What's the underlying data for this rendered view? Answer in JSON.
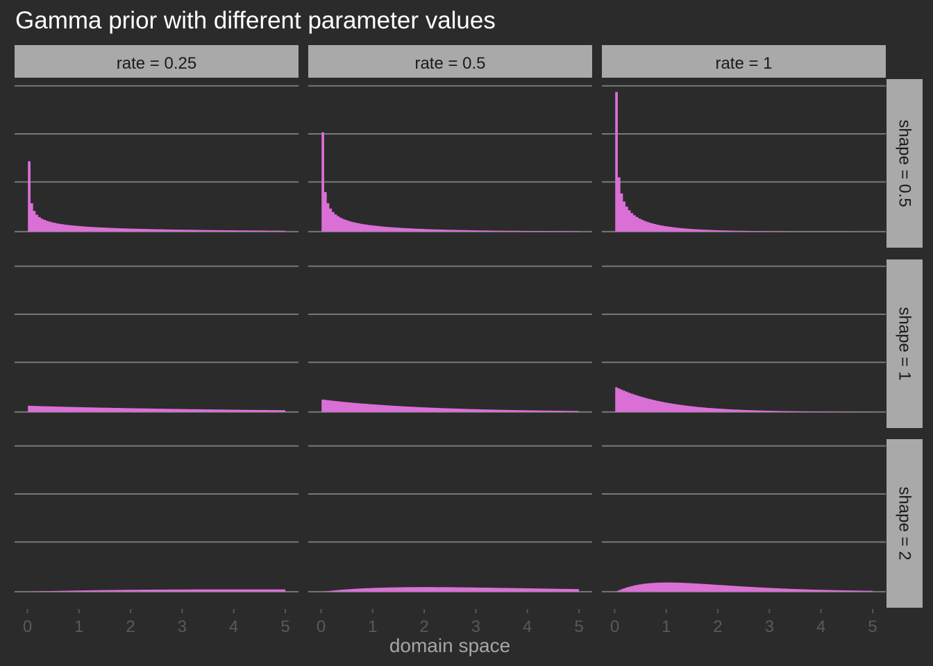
{
  "chart_data": {
    "type": "area",
    "title": "Gamma prior with different parameter values",
    "xlabel": "domain space",
    "ylabel": "",
    "xlim": [
      0,
      5
    ],
    "x_ticks": [
      "0",
      "1",
      "2",
      "3",
      "4",
      "5"
    ],
    "grid": "horizontal",
    "fill_color": "#da70d6",
    "background_color": "#2b2b2b",
    "strip_color": "#a9a9a9",
    "gridline_color": "#777777",
    "col_facets": {
      "labels": [
        "rate = 0.25",
        "rate = 0.5",
        "rate = 1"
      ],
      "values": [
        0.25,
        0.5,
        1
      ]
    },
    "row_facets": {
      "labels": [
        "shape = 0.5",
        "shape = 1",
        "shape = 2"
      ],
      "values": [
        0.5,
        1,
        2
      ]
    },
    "density_function": "gamma(shape, rate)",
    "x_range_plotted": [
      0.01,
      5
    ]
  }
}
